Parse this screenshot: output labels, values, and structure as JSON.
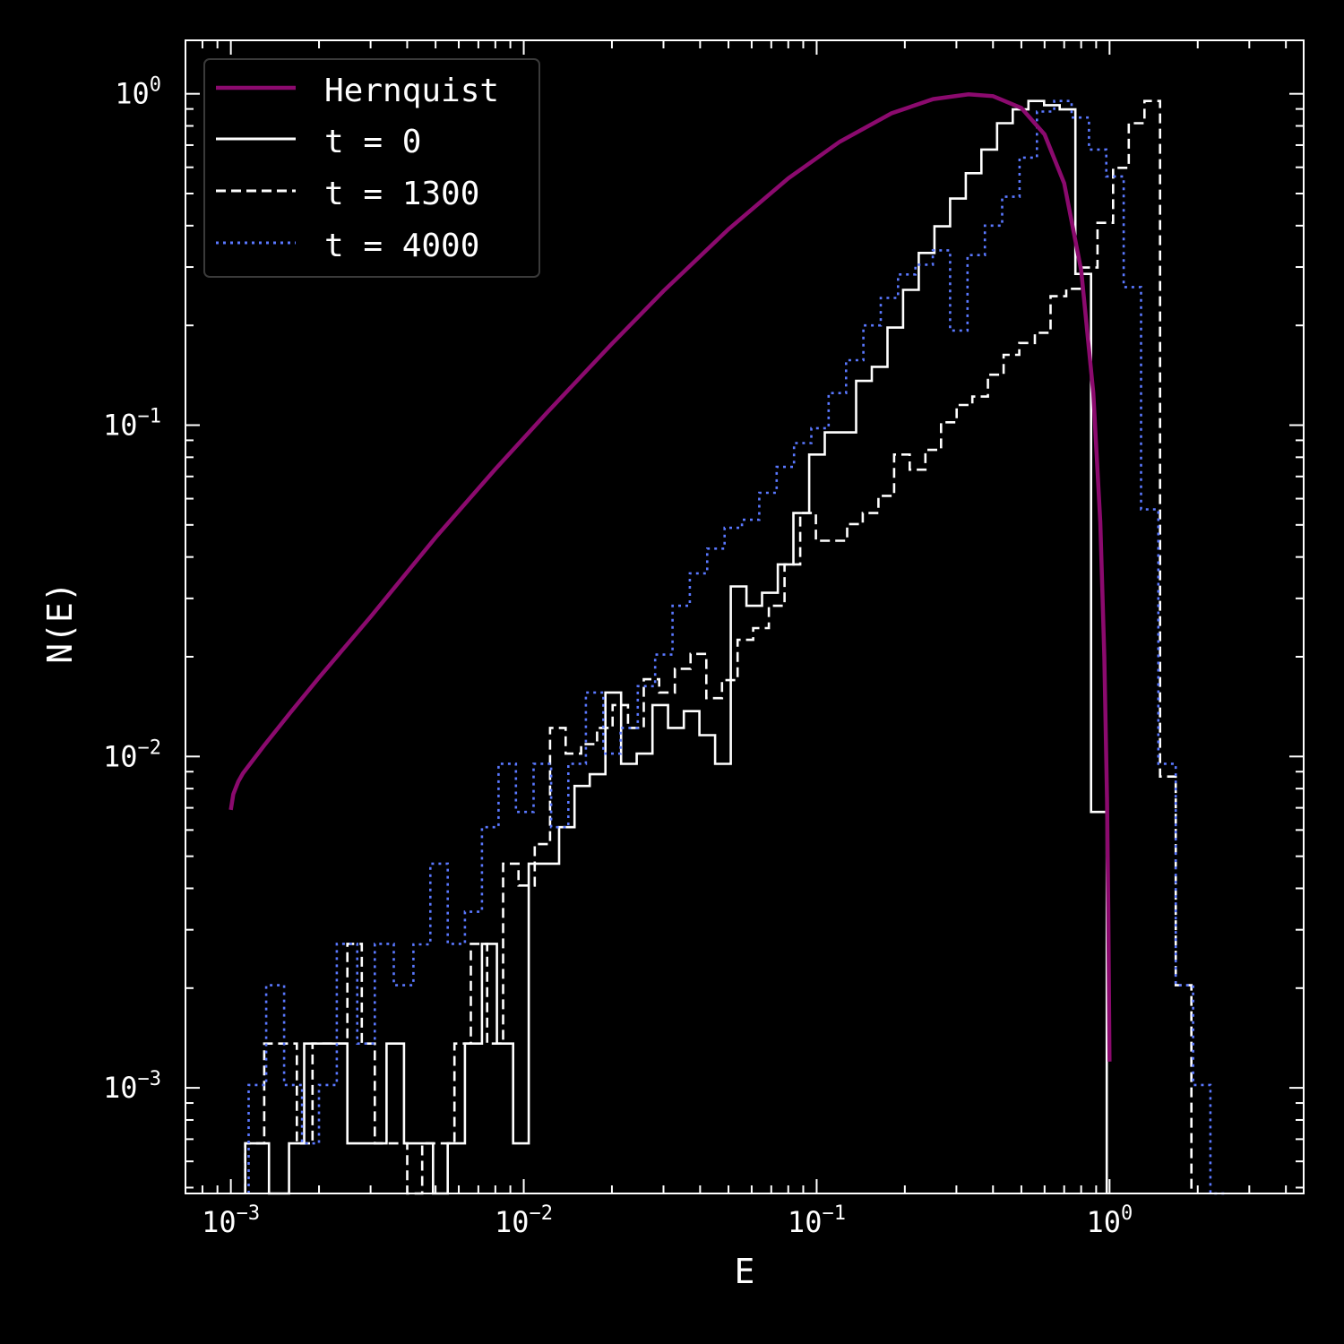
{
  "chart_data": {
    "type": "line",
    "xscale": "log",
    "yscale": "log",
    "xlim": [
      0.0007,
      4.6
    ],
    "ylim": [
      0.00048,
      1.45
    ],
    "xlabel": "E",
    "ylabel": "N(E)",
    "x_ticks": [
      {
        "value": 0.001,
        "base": "10",
        "exp": "−3"
      },
      {
        "value": 0.01,
        "base": "10",
        "exp": "−2"
      },
      {
        "value": 0.1,
        "base": "10",
        "exp": "−1"
      },
      {
        "value": 1,
        "base": "10",
        "exp": "0"
      }
    ],
    "y_ticks": [
      {
        "value": 0.001,
        "base": "10",
        "exp": "−3"
      },
      {
        "value": 0.01,
        "base": "10",
        "exp": "−2"
      },
      {
        "value": 0.1,
        "base": "10",
        "exp": "−1"
      },
      {
        "value": 1,
        "base": "10",
        "exp": "0"
      }
    ],
    "legend_position": "top-left",
    "grid": false,
    "series": [
      {
        "name": "Hernquist",
        "kind": "curve",
        "color": "#8b0a6e",
        "style": "solid",
        "x": [
          0.001,
          0.00102,
          0.00106,
          0.0011,
          0.0013,
          0.0016,
          0.002,
          0.003,
          0.005,
          0.008,
          0.012,
          0.02,
          0.03,
          0.05,
          0.08,
          0.12,
          0.18,
          0.25,
          0.33,
          0.4,
          0.5,
          0.6,
          0.7,
          0.8,
          0.88,
          0.93,
          0.96,
          0.98,
          0.99,
          1.0
        ],
        "y": [
          0.0069,
          0.0077,
          0.0084,
          0.0089,
          0.0108,
          0.0136,
          0.0173,
          0.0264,
          0.0458,
          0.0737,
          0.109,
          0.176,
          0.254,
          0.39,
          0.556,
          0.717,
          0.873,
          0.964,
          0.996,
          0.984,
          0.906,
          0.754,
          0.537,
          0.293,
          0.125,
          0.051,
          0.02,
          0.0075,
          0.0035,
          0.0012
        ]
      },
      {
        "name": "t = 0",
        "kind": "step",
        "color": "#ffffff",
        "style": "solid",
        "edges": [
          0.00112,
          0.00135,
          0.00158,
          0.00178,
          0.0021,
          0.0025,
          0.0028,
          0.0034,
          0.0039,
          0.0049,
          0.0055,
          0.0063,
          0.0072,
          0.0081,
          0.0092,
          0.0104,
          0.0117,
          0.0132,
          0.0149,
          0.0168,
          0.019,
          0.0215,
          0.0243,
          0.0275,
          0.0311,
          0.0352,
          0.0398,
          0.045,
          0.0509,
          0.0576,
          0.0651,
          0.0737,
          0.0833,
          0.0943,
          0.1066,
          0.1206,
          0.1364,
          0.1543,
          0.1745,
          0.1973,
          0.2232,
          0.2524,
          0.2855,
          0.3229,
          0.3652,
          0.4131,
          0.4672,
          0.5284,
          0.5976,
          0.6759,
          0.7645,
          0.8647,
          0.978
        ],
        "values": [
          0.00068,
          0.0004,
          0.00068,
          0.00136,
          0.00136,
          0.00068,
          0.00068,
          0.00136,
          0.00068,
          0.0004,
          0.00068,
          0.00136,
          0.00272,
          0.00136,
          0.00068,
          0.00475,
          0.00475,
          0.00612,
          0.00815,
          0.00884,
          0.0156,
          0.0095,
          0.0102,
          0.0143,
          0.0122,
          0.0137,
          0.0116,
          0.0095,
          0.0326,
          0.0285,
          0.0312,
          0.038,
          0.0543,
          0.0815,
          0.0951,
          0.0951,
          0.136,
          0.15,
          0.197,
          0.256,
          0.331,
          0.398,
          0.483,
          0.576,
          0.679,
          0.815,
          0.897,
          0.951,
          0.924,
          0.897,
          0.286,
          0.0068
        ]
      },
      {
        "name": "t = 1300",
        "kind": "step",
        "color": "#ffffff",
        "style": "dashed",
        "edges": [
          0.00112,
          0.0013,
          0.00148,
          0.00168,
          0.0019,
          0.0022,
          0.0025,
          0.0028,
          0.0031,
          0.0035,
          0.004,
          0.0045,
          0.0051,
          0.0058,
          0.0066,
          0.0075,
          0.0085,
          0.0096,
          0.0109,
          0.0123,
          0.0139,
          0.0157,
          0.0178,
          0.0201,
          0.0227,
          0.0257,
          0.029,
          0.0328,
          0.0371,
          0.042,
          0.0475,
          0.0537,
          0.0607,
          0.0687,
          0.0777,
          0.0879,
          0.0994,
          0.1124,
          0.1271,
          0.1437,
          0.1625,
          0.1838,
          0.2079,
          0.2351,
          0.2659,
          0.3007,
          0.34,
          0.3845,
          0.4348,
          0.4917,
          0.5561,
          0.6289,
          0.7112,
          0.8043,
          0.9096,
          1.0286,
          1.1632,
          1.3155,
          1.4877,
          1.6824,
          1.9026
        ],
        "values": [
          0.00068,
          0.00136,
          0.00136,
          0.00068,
          0.00136,
          0.00136,
          0.00272,
          0.00136,
          0.00068,
          0.00068,
          0.0004,
          0.00068,
          0.00068,
          0.00136,
          0.00272,
          0.00136,
          0.00475,
          0.00408,
          0.00544,
          0.0122,
          0.0102,
          0.0109,
          0.0122,
          0.0143,
          0.0122,
          0.0171,
          0.0156,
          0.0184,
          0.0204,
          0.015,
          0.017,
          0.0225,
          0.0244,
          0.0285,
          0.038,
          0.0543,
          0.0448,
          0.0448,
          0.0503,
          0.0543,
          0.0612,
          0.0815,
          0.0734,
          0.0842,
          0.102,
          0.115,
          0.122,
          0.142,
          0.163,
          0.177,
          0.19,
          0.245,
          0.258,
          0.299,
          0.408,
          0.598,
          0.815,
          0.951,
          0.0087,
          0.00204,
          0.0004
        ]
      },
      {
        "name": "t = 4000",
        "kind": "step",
        "color": "#5a78ff",
        "style": "dotted",
        "edges": [
          0.00115,
          0.00132,
          0.00152,
          0.00175,
          0.002,
          0.0023,
          0.0027,
          0.0031,
          0.0036,
          0.0042,
          0.0048,
          0.0055,
          0.0063,
          0.0072,
          0.0082,
          0.0094,
          0.0108,
          0.0124,
          0.0142,
          0.0163,
          0.0187,
          0.0214,
          0.0245,
          0.0281,
          0.0322,
          0.0369,
          0.0423,
          0.0485,
          0.0556,
          0.0637,
          0.073,
          0.0837,
          0.0959,
          0.1099,
          0.126,
          0.1444,
          0.1655,
          0.1897,
          0.2174,
          0.2492,
          0.2856,
          0.3274,
          0.3752,
          0.43,
          0.4929,
          0.5649,
          0.6475,
          0.7421,
          0.8506,
          0.9749,
          1.1174,
          1.2807,
          1.4679,
          1.6824,
          1.9283,
          2.2102,
          2.5332
        ],
        "values": [
          0.00102,
          0.00204,
          0.00102,
          0.00068,
          0.00102,
          0.00272,
          0.00136,
          0.00272,
          0.00204,
          0.00271,
          0.00475,
          0.00272,
          0.0034,
          0.00612,
          0.00951,
          0.0068,
          0.00951,
          0.00612,
          0.00951,
          0.0156,
          0.0102,
          0.0122,
          0.0163,
          0.0203,
          0.0285,
          0.0357,
          0.0424,
          0.049,
          0.0518,
          0.0625,
          0.0748,
          0.0883,
          0.0979,
          0.125,
          0.157,
          0.2,
          0.242,
          0.285,
          0.305,
          0.337,
          0.193,
          0.326,
          0.4,
          0.489,
          0.642,
          0.884,
          0.951,
          0.848,
          0.679,
          0.563,
          0.261,
          0.0557,
          0.00951,
          0.00204,
          0.00102,
          0.0004
        ]
      }
    ]
  }
}
